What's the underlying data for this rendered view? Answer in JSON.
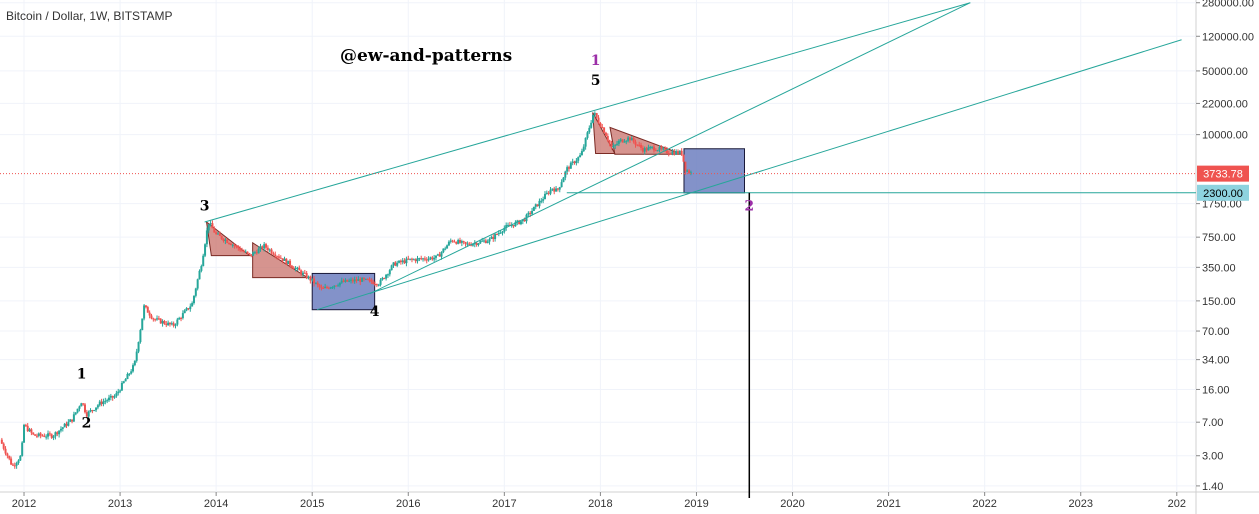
{
  "header": {
    "title": "Bitcoin / Dollar, 1W, BITSTAMP"
  },
  "watermark": "@ew-and-patterns",
  "price_tag": {
    "value": "3733.78",
    "color": "#ef5350"
  },
  "level_tag": {
    "value": "2300.00",
    "color": "#8ed3df"
  },
  "colors": {
    "up": "#26a69a",
    "down": "#ef5350",
    "trendline": "#26a69a",
    "triangle_fill": "#c8706a",
    "box_fill": "#6d7fbf",
    "wave_label": "#000000",
    "wave_label_alt": "#9c2fa8"
  },
  "chart_data": {
    "type": "candlestick",
    "title": "Bitcoin / Dollar, 1W, BITSTAMP",
    "x_ticks": [
      "2012",
      "2013",
      "2014",
      "2015",
      "2016",
      "2017",
      "2018",
      "2019",
      "2020",
      "2021",
      "2022",
      "2023",
      "202"
    ],
    "y_ticks": [
      "280000.00",
      "120000.00",
      "50000.00",
      "22000.00",
      "10000.00",
      "3733.78",
      "2300.00",
      "1750.00",
      "750.00",
      "350.00",
      "150.00",
      "70.00",
      "34.00",
      "16.00",
      "7.00",
      "3.00",
      "1.40"
    ],
    "y_scale": "log",
    "ylim": [
      1.2,
      300000
    ],
    "xlim": [
      2011.75,
      2024.2
    ],
    "current_price": 3733.78,
    "horizontal_level": 2300,
    "price_path": [
      [
        2011.75,
        4.5
      ],
      [
        2011.88,
        2.3
      ],
      [
        2011.97,
        3.0
      ],
      [
        2012.0,
        6.5
      ],
      [
        2012.1,
        5.0
      ],
      [
        2012.3,
        5.0
      ],
      [
        2012.5,
        7.5
      ],
      [
        2012.6,
        12.0
      ],
      [
        2012.65,
        8.5
      ],
      [
        2012.8,
        11.5
      ],
      [
        2012.95,
        13.5
      ],
      [
        2013.15,
        30.0
      ],
      [
        2013.25,
        130.0
      ],
      [
        2013.35,
        95.0
      ],
      [
        2013.55,
        80.0
      ],
      [
        2013.75,
        140.0
      ],
      [
        2013.85,
        400.0
      ],
      [
        2013.92,
        1100.0
      ],
      [
        2014.0,
        800.0
      ],
      [
        2014.15,
        650.0
      ],
      [
        2014.35,
        470.0
      ],
      [
        2014.5,
        600.0
      ],
      [
        2014.75,
        390.0
      ],
      [
        2015.0,
        250.0
      ],
      [
        2015.1,
        200.0
      ],
      [
        2015.3,
        240.0
      ],
      [
        2015.5,
        255.0
      ],
      [
        2015.7,
        235.0
      ],
      [
        2015.85,
        380.0
      ],
      [
        2016.0,
        420.0
      ],
      [
        2016.3,
        450.0
      ],
      [
        2016.45,
        700.0
      ],
      [
        2016.6,
        620.0
      ],
      [
        2016.85,
        700.0
      ],
      [
        2017.0,
        950.0
      ],
      [
        2017.2,
        1150.0
      ],
      [
        2017.4,
        2000.0
      ],
      [
        2017.5,
        2600.0
      ],
      [
        2017.55,
        2400.0
      ],
      [
        2017.65,
        4200.0
      ],
      [
        2017.8,
        6000.0
      ],
      [
        2017.93,
        17500.0
      ],
      [
        2017.98,
        14000.0
      ],
      [
        2018.05,
        10500.0
      ],
      [
        2018.12,
        7000.0
      ],
      [
        2018.2,
        8500.0
      ],
      [
        2018.3,
        9200.0
      ],
      [
        2018.45,
        6800.0
      ],
      [
        2018.55,
        7200.0
      ],
      [
        2018.7,
        6500.0
      ],
      [
        2018.85,
        6300.0
      ],
      [
        2018.88,
        4200.0
      ],
      [
        2018.95,
        3733.78
      ]
    ],
    "wave_labels": [
      {
        "text": "1",
        "x": 2012.6,
        "y": 21.0
      },
      {
        "text": "2",
        "x": 2012.65,
        "y": 6.1
      },
      {
        "text": "3",
        "x": 2013.88,
        "y": 1480.0
      },
      {
        "text": "4",
        "x": 2015.65,
        "y": 103.0
      },
      {
        "text": "1",
        "x": 2017.95,
        "y": 58000.0
      },
      {
        "text": "5",
        "x": 2017.95,
        "y": 35000.0
      },
      {
        "text": "2",
        "x": 2019.55,
        "y": 1480.0
      }
    ],
    "trendlines": [
      {
        "x1": 2013.88,
        "y1": 1100.0,
        "x2": 2021.85,
        "y2": 280000.0
      },
      {
        "x1": 2015.6,
        "y1": 180.0,
        "x2": 2021.85,
        "y2": 280000.0
      },
      {
        "x1": 2015.05,
        "y1": 120.0,
        "x2": 2024.05,
        "y2": 110000.0
      }
    ],
    "triangles": [
      [
        [
          2013.9,
          1100.0
        ],
        [
          2013.95,
          470.0
        ],
        [
          2014.35,
          470.0
        ]
      ],
      [
        [
          2014.38,
          650.0
        ],
        [
          2014.38,
          270.0
        ],
        [
          2014.95,
          270.0
        ]
      ],
      [
        [
          2017.92,
          17500.0
        ],
        [
          2017.95,
          6200.0
        ],
        [
          2018.15,
          6200.0
        ]
      ],
      [
        [
          2018.1,
          12000.0
        ],
        [
          2018.15,
          6100.0
        ],
        [
          2018.85,
          6100.0
        ]
      ]
    ],
    "boxes": [
      {
        "x1": 2015.0,
        "x2": 2015.65,
        "y1": 120.0,
        "y2": 300.0
      },
      {
        "x1": 2018.87,
        "x2": 2019.5,
        "y1": 2300.0,
        "y2": 7000.0
      }
    ],
    "vertical_marker": {
      "x": 2019.55,
      "y_top": 2300.0
    }
  }
}
